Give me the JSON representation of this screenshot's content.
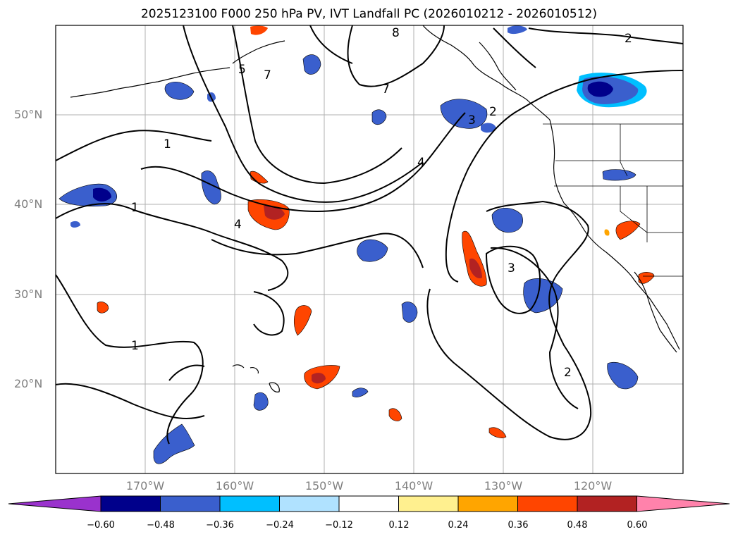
{
  "title": "2025123100 F000 250 hPa PV, IVT Landfall PC (2026010212 - 2026010512)",
  "axes": {
    "lat_labels": [
      "50°N",
      "40°N",
      "30°N",
      "20°N"
    ],
    "lon_labels": [
      "170°W",
      "160°W",
      "150°W",
      "140°W",
      "130°W",
      "120°W"
    ]
  },
  "colorbar": {
    "ticks": [
      "−0.60",
      "−0.48",
      "−0.36",
      "−0.24",
      "−0.12",
      "0.12",
      "0.24",
      "0.36",
      "0.48",
      "0.60"
    ],
    "colors": [
      "#9a32cd",
      "#00008b",
      "#3a5fcd",
      "#00bfff",
      "#b0e2ff",
      "#ffffff",
      "#fff08f",
      "#ffa500",
      "#ff4500",
      "#b22222",
      "#ff82ab"
    ]
  },
  "contour_labels": [
    "1",
    "1",
    "1",
    "2",
    "2",
    "2",
    "3",
    "3",
    "4",
    "4",
    "5",
    "7",
    "7",
    "8"
  ],
  "colors": {
    "contour": "#000000",
    "coast": "#000000",
    "grid": "#b0b0b0",
    "neg_dark": "#00008b",
    "neg_mid": "#3a5fcd",
    "neg_light": "#00bfff",
    "pos_light": "#ffa500",
    "pos_mid": "#ff4500",
    "pos_dark": "#b22222"
  }
}
